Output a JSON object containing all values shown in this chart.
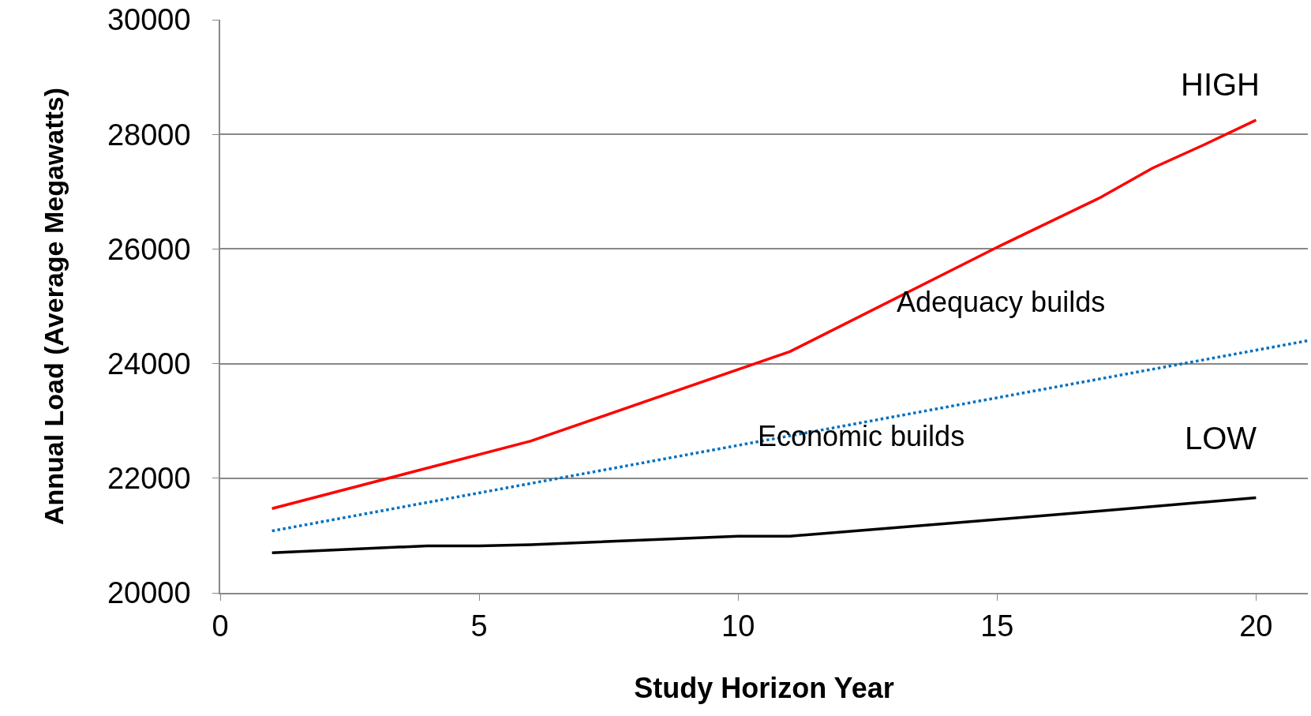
{
  "chart_data": {
    "type": "line",
    "xlabel": "Study Horizon Year",
    "ylabel": "Annual Load (Average Megawatts)",
    "series": [
      {
        "name": "HIGH",
        "color": "#ff0000",
        "x": [
          1,
          6,
          11,
          15,
          17,
          18,
          19,
          20
        ],
        "values": [
          21470,
          22650,
          24210,
          26030,
          26900,
          27410,
          27820,
          28250
        ],
        "line_style": "solid"
      },
      {
        "color": "#0070c0",
        "x": [
          1,
          21
        ],
        "values": [
          21080,
          24400
        ],
        "line_style": "dotted"
      },
      {
        "name": "LOW",
        "color": "#000000",
        "x": [
          1,
          4,
          5,
          6,
          10,
          11,
          15,
          17,
          20
        ],
        "values": [
          20700,
          20820,
          20820,
          20840,
          20990,
          20990,
          21280,
          21430,
          21660
        ],
        "line_style": "solid"
      }
    ],
    "annotations": [
      "Adequacy builds",
      "Economic builds"
    ],
    "xlim": [
      0,
      21
    ],
    "xticks": [
      0,
      5,
      10,
      15,
      20
    ],
    "ylim": [
      20000,
      30000
    ],
    "yticks": [
      20000,
      22000,
      24000,
      26000,
      28000,
      30000
    ],
    "grid": "y",
    "legend": false,
    "marker": "none"
  }
}
